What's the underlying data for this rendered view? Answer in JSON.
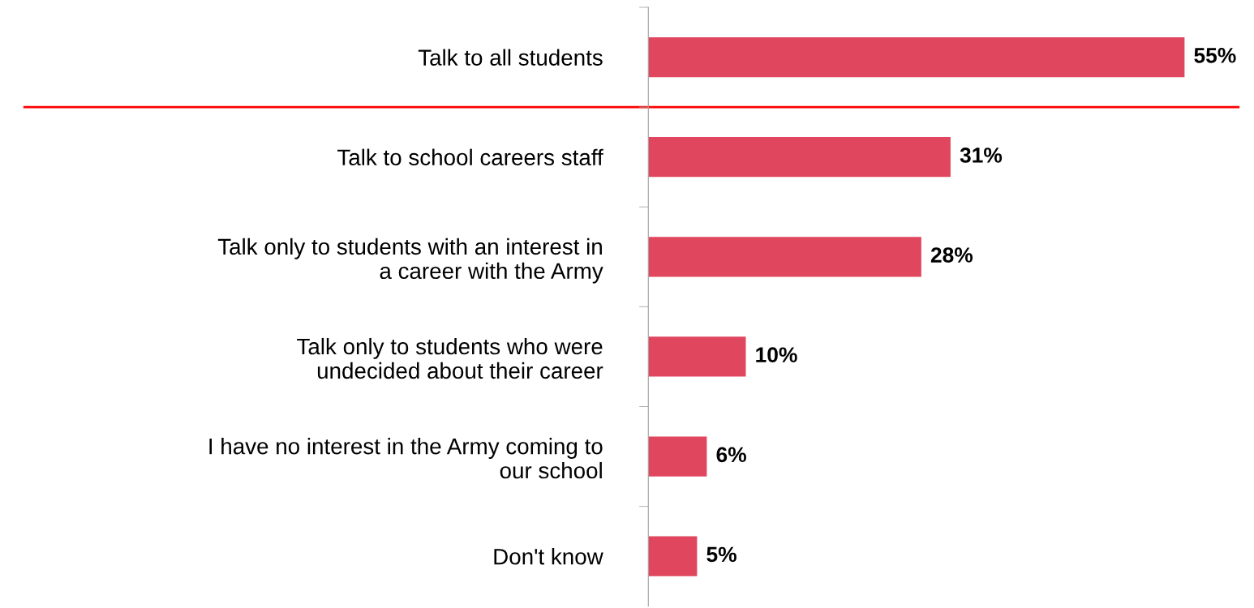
{
  "chart_data": {
    "type": "bar",
    "orientation": "horizontal",
    "categories": [
      "Talk to all students",
      "Talk to school careers staff",
      "Talk only to students with an interest in\na career with the Army",
      "Talk only to students who were\nundecided about their career",
      "I have no interest in the Army coming to\nour school",
      "Don't know"
    ],
    "values": [
      55,
      31,
      28,
      10,
      6,
      5
    ],
    "color": "#e0475f",
    "value_labels": [
      "55%",
      "31%",
      "28%",
      "10%",
      "6%",
      "5%"
    ],
    "tick_labels": "y",
    "grid": false,
    "legend": false
  }
}
